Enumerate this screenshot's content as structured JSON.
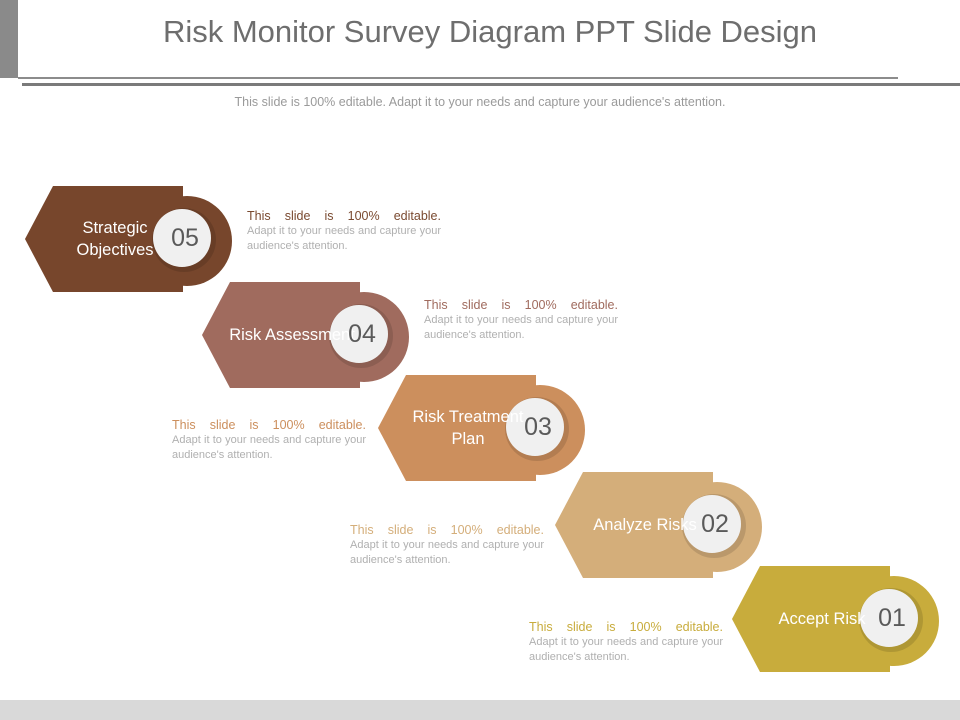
{
  "slide": {
    "title": "Risk Monitor Survey Diagram PPT Slide Design",
    "subtitle": "This slide is 100% editable. Adapt it to your needs and capture your audience's attention."
  },
  "steps": [
    {
      "number": "05",
      "label": "Strategic Objectives",
      "color": "#77462c"
    },
    {
      "number": "04",
      "label": "Risk Assessment",
      "color": "#a06b5e"
    },
    {
      "number": "03",
      "label": "Risk Treatment Plan",
      "color": "#cc8f5d"
    },
    {
      "number": "02",
      "label": "Analyze Risks",
      "color": "#d4ae7a"
    },
    {
      "number": "01",
      "label": "Accept Risk",
      "color": "#c8ac3c"
    }
  ],
  "notes": [
    {
      "lead": "This slide is 100% editable.",
      "body": "Adapt it to your needs and capture your audience's attention.",
      "color": "#7a4a30"
    },
    {
      "lead": "This slide is 100% editable.",
      "body": "Adapt it to your needs and capture your audience's attention.",
      "color": "#a06b5e"
    },
    {
      "lead": "This slide is 100% editable.",
      "body": "Adapt it to your needs and capture your audience's attention.",
      "color": "#cc8f5d"
    },
    {
      "lead": "This slide is 100% editable.",
      "body": "Adapt it to your needs and capture your audience's attention.",
      "color": "#d4ae7a"
    },
    {
      "lead": "This slide is 100% editable.",
      "body": "Adapt it to your needs and capture your audience's attention.",
      "color": "#c8ac3c"
    }
  ]
}
